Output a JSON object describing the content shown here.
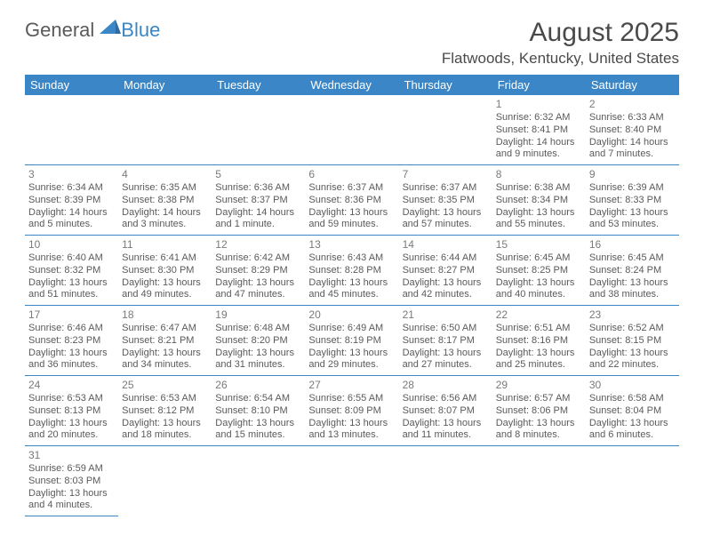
{
  "logo": {
    "text_left": "General",
    "text_right": "Blue",
    "left_color": "#6a6a6a",
    "right_color": "#3b86c6",
    "sail_color": "#3b86c6"
  },
  "title": "August 2025",
  "location": "Flatwoods, Kentucky, United States",
  "header_bg": "#3b86c6",
  "header_fg": "#ffffff",
  "border_color": "#3b86c6",
  "text_color": "#5a5a5a",
  "daynum_color": "#7a7a7a",
  "days_of_week": [
    "Sunday",
    "Monday",
    "Tuesday",
    "Wednesday",
    "Thursday",
    "Friday",
    "Saturday"
  ],
  "leading_blanks": 5,
  "days": [
    {
      "n": "1",
      "sunrise": "6:32 AM",
      "sunset": "8:41 PM",
      "daylight": "14 hours and 9 minutes."
    },
    {
      "n": "2",
      "sunrise": "6:33 AM",
      "sunset": "8:40 PM",
      "daylight": "14 hours and 7 minutes."
    },
    {
      "n": "3",
      "sunrise": "6:34 AM",
      "sunset": "8:39 PM",
      "daylight": "14 hours and 5 minutes."
    },
    {
      "n": "4",
      "sunrise": "6:35 AM",
      "sunset": "8:38 PM",
      "daylight": "14 hours and 3 minutes."
    },
    {
      "n": "5",
      "sunrise": "6:36 AM",
      "sunset": "8:37 PM",
      "daylight": "14 hours and 1 minute."
    },
    {
      "n": "6",
      "sunrise": "6:37 AM",
      "sunset": "8:36 PM",
      "daylight": "13 hours and 59 minutes."
    },
    {
      "n": "7",
      "sunrise": "6:37 AM",
      "sunset": "8:35 PM",
      "daylight": "13 hours and 57 minutes."
    },
    {
      "n": "8",
      "sunrise": "6:38 AM",
      "sunset": "8:34 PM",
      "daylight": "13 hours and 55 minutes."
    },
    {
      "n": "9",
      "sunrise": "6:39 AM",
      "sunset": "8:33 PM",
      "daylight": "13 hours and 53 minutes."
    },
    {
      "n": "10",
      "sunrise": "6:40 AM",
      "sunset": "8:32 PM",
      "daylight": "13 hours and 51 minutes."
    },
    {
      "n": "11",
      "sunrise": "6:41 AM",
      "sunset": "8:30 PM",
      "daylight": "13 hours and 49 minutes."
    },
    {
      "n": "12",
      "sunrise": "6:42 AM",
      "sunset": "8:29 PM",
      "daylight": "13 hours and 47 minutes."
    },
    {
      "n": "13",
      "sunrise": "6:43 AM",
      "sunset": "8:28 PM",
      "daylight": "13 hours and 45 minutes."
    },
    {
      "n": "14",
      "sunrise": "6:44 AM",
      "sunset": "8:27 PM",
      "daylight": "13 hours and 42 minutes."
    },
    {
      "n": "15",
      "sunrise": "6:45 AM",
      "sunset": "8:25 PM",
      "daylight": "13 hours and 40 minutes."
    },
    {
      "n": "16",
      "sunrise": "6:45 AM",
      "sunset": "8:24 PM",
      "daylight": "13 hours and 38 minutes."
    },
    {
      "n": "17",
      "sunrise": "6:46 AM",
      "sunset": "8:23 PM",
      "daylight": "13 hours and 36 minutes."
    },
    {
      "n": "18",
      "sunrise": "6:47 AM",
      "sunset": "8:21 PM",
      "daylight": "13 hours and 34 minutes."
    },
    {
      "n": "19",
      "sunrise": "6:48 AM",
      "sunset": "8:20 PM",
      "daylight": "13 hours and 31 minutes."
    },
    {
      "n": "20",
      "sunrise": "6:49 AM",
      "sunset": "8:19 PM",
      "daylight": "13 hours and 29 minutes."
    },
    {
      "n": "21",
      "sunrise": "6:50 AM",
      "sunset": "8:17 PM",
      "daylight": "13 hours and 27 minutes."
    },
    {
      "n": "22",
      "sunrise": "6:51 AM",
      "sunset": "8:16 PM",
      "daylight": "13 hours and 25 minutes."
    },
    {
      "n": "23",
      "sunrise": "6:52 AM",
      "sunset": "8:15 PM",
      "daylight": "13 hours and 22 minutes."
    },
    {
      "n": "24",
      "sunrise": "6:53 AM",
      "sunset": "8:13 PM",
      "daylight": "13 hours and 20 minutes."
    },
    {
      "n": "25",
      "sunrise": "6:53 AM",
      "sunset": "8:12 PM",
      "daylight": "13 hours and 18 minutes."
    },
    {
      "n": "26",
      "sunrise": "6:54 AM",
      "sunset": "8:10 PM",
      "daylight": "13 hours and 15 minutes."
    },
    {
      "n": "27",
      "sunrise": "6:55 AM",
      "sunset": "8:09 PM",
      "daylight": "13 hours and 13 minutes."
    },
    {
      "n": "28",
      "sunrise": "6:56 AM",
      "sunset": "8:07 PM",
      "daylight": "13 hours and 11 minutes."
    },
    {
      "n": "29",
      "sunrise": "6:57 AM",
      "sunset": "8:06 PM",
      "daylight": "13 hours and 8 minutes."
    },
    {
      "n": "30",
      "sunrise": "6:58 AM",
      "sunset": "8:04 PM",
      "daylight": "13 hours and 6 minutes."
    },
    {
      "n": "31",
      "sunrise": "6:59 AM",
      "sunset": "8:03 PM",
      "daylight": "13 hours and 4 minutes."
    }
  ],
  "labels": {
    "sunrise": "Sunrise:",
    "sunset": "Sunset:",
    "daylight": "Daylight:"
  }
}
